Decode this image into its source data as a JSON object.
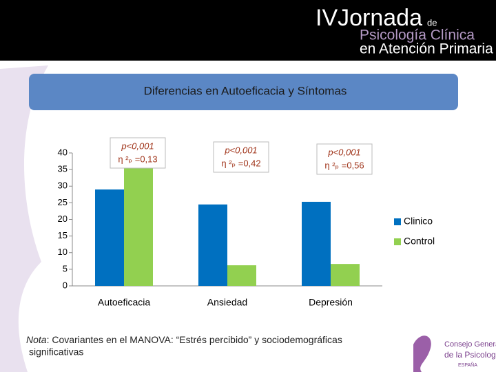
{
  "header": {
    "title": "IVJornada",
    "title_suffix": "de",
    "line2": "Psicología Clínica",
    "line3": "en Atención Primaria"
  },
  "banner": "Diferencias en Autoeficacia y Síntomas",
  "chart_data": {
    "type": "bar",
    "categories": [
      "Autoeficacia",
      "Ansiedad",
      "Depresión"
    ],
    "series": [
      {
        "name": "Clinico",
        "color": "#0070c0",
        "values": [
          29,
          24.5,
          25.3
        ]
      },
      {
        "name": "Control",
        "color": "#92d050",
        "values": [
          37,
          6.2,
          6.6
        ]
      }
    ],
    "ylim": [
      0,
      40
    ],
    "yticks": [
      0,
      5,
      10,
      15,
      20,
      25,
      30,
      35,
      40
    ],
    "legend": "right",
    "annotations": [
      [
        "p<0,001",
        "η ²ₚ =0,13"
      ],
      [
        "p<0,001",
        "η ²ₚ =0,42"
      ],
      [
        "p<0,001",
        "η ²ₚ =0,56"
      ]
    ]
  },
  "note": {
    "lead": "Nota",
    "text": ": Covariantes en el MANOVA: “Estrés percibido” y sociodemográficas",
    "text2": "significativas"
  },
  "logo": {
    "line1": "Consejo General",
    "line2": "de la Psicología",
    "line3": "ESPAÑA"
  }
}
